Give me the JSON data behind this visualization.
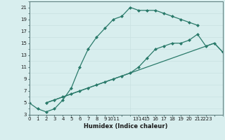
{
  "xlabel": "Humidex (Indice chaleur)",
  "bg_color": "#d8eeee",
  "grid_color": "#c8e0e0",
  "line_color": "#2a7a6a",
  "xlim": [
    0,
    23
  ],
  "ylim": [
    3,
    22
  ],
  "yticks": [
    3,
    5,
    7,
    9,
    11,
    13,
    15,
    17,
    19,
    21
  ],
  "line1_x": [
    0,
    1,
    2,
    3,
    4,
    5,
    6,
    7,
    8,
    9,
    10,
    11,
    12,
    13,
    14,
    15,
    16,
    17,
    18,
    19,
    20
  ],
  "line1_y": [
    5,
    4,
    3.5,
    4,
    5.5,
    7.5,
    11,
    14,
    16,
    17.5,
    19,
    19.5,
    21,
    20.5,
    20.5,
    20.5,
    20,
    19.5,
    19,
    18.5,
    18
  ],
  "line2_x": [
    2,
    3,
    4,
    5,
    6,
    7,
    8,
    9,
    10,
    11,
    12,
    13,
    14,
    15,
    16,
    17,
    18,
    19,
    20,
    21,
    22,
    23
  ],
  "line2_y": [
    5,
    5.5,
    6,
    6.5,
    7,
    7.5,
    8,
    8.5,
    9,
    9.5,
    10,
    11,
    12.5,
    14,
    14.5,
    15,
    15,
    15.5,
    16.5,
    14.5,
    15,
    13.5
  ],
  "line3_x": [
    2,
    3,
    4,
    5,
    6,
    7,
    8,
    9,
    10,
    11,
    12,
    13,
    14,
    15,
    16,
    17,
    18,
    19,
    20,
    21,
    22,
    23
  ],
  "line3_y": [
    5,
    5.5,
    6,
    6.5,
    7,
    7.5,
    8,
    8.5,
    9,
    9.5,
    10,
    10.5,
    11,
    11.5,
    12,
    12.5,
    13,
    13.5,
    14,
    14.5,
    15,
    13.5
  ],
  "xtick_pos": [
    0,
    1,
    2,
    3,
    4,
    5,
    6,
    7,
    8,
    9,
    10,
    11,
    13,
    14,
    15,
    16,
    17,
    18,
    19,
    20,
    21,
    22
  ],
  "xtick_labels": [
    "0",
    "1",
    "2",
    "3",
    "4",
    "5",
    "6",
    "7",
    "8",
    "9",
    "1011",
    "",
    "1314",
    "15",
    "16",
    "17",
    "18",
    "19",
    "20",
    "21",
    "2223",
    ""
  ],
  "fontsize_tick": 5,
  "fontsize_xlabel": 6
}
